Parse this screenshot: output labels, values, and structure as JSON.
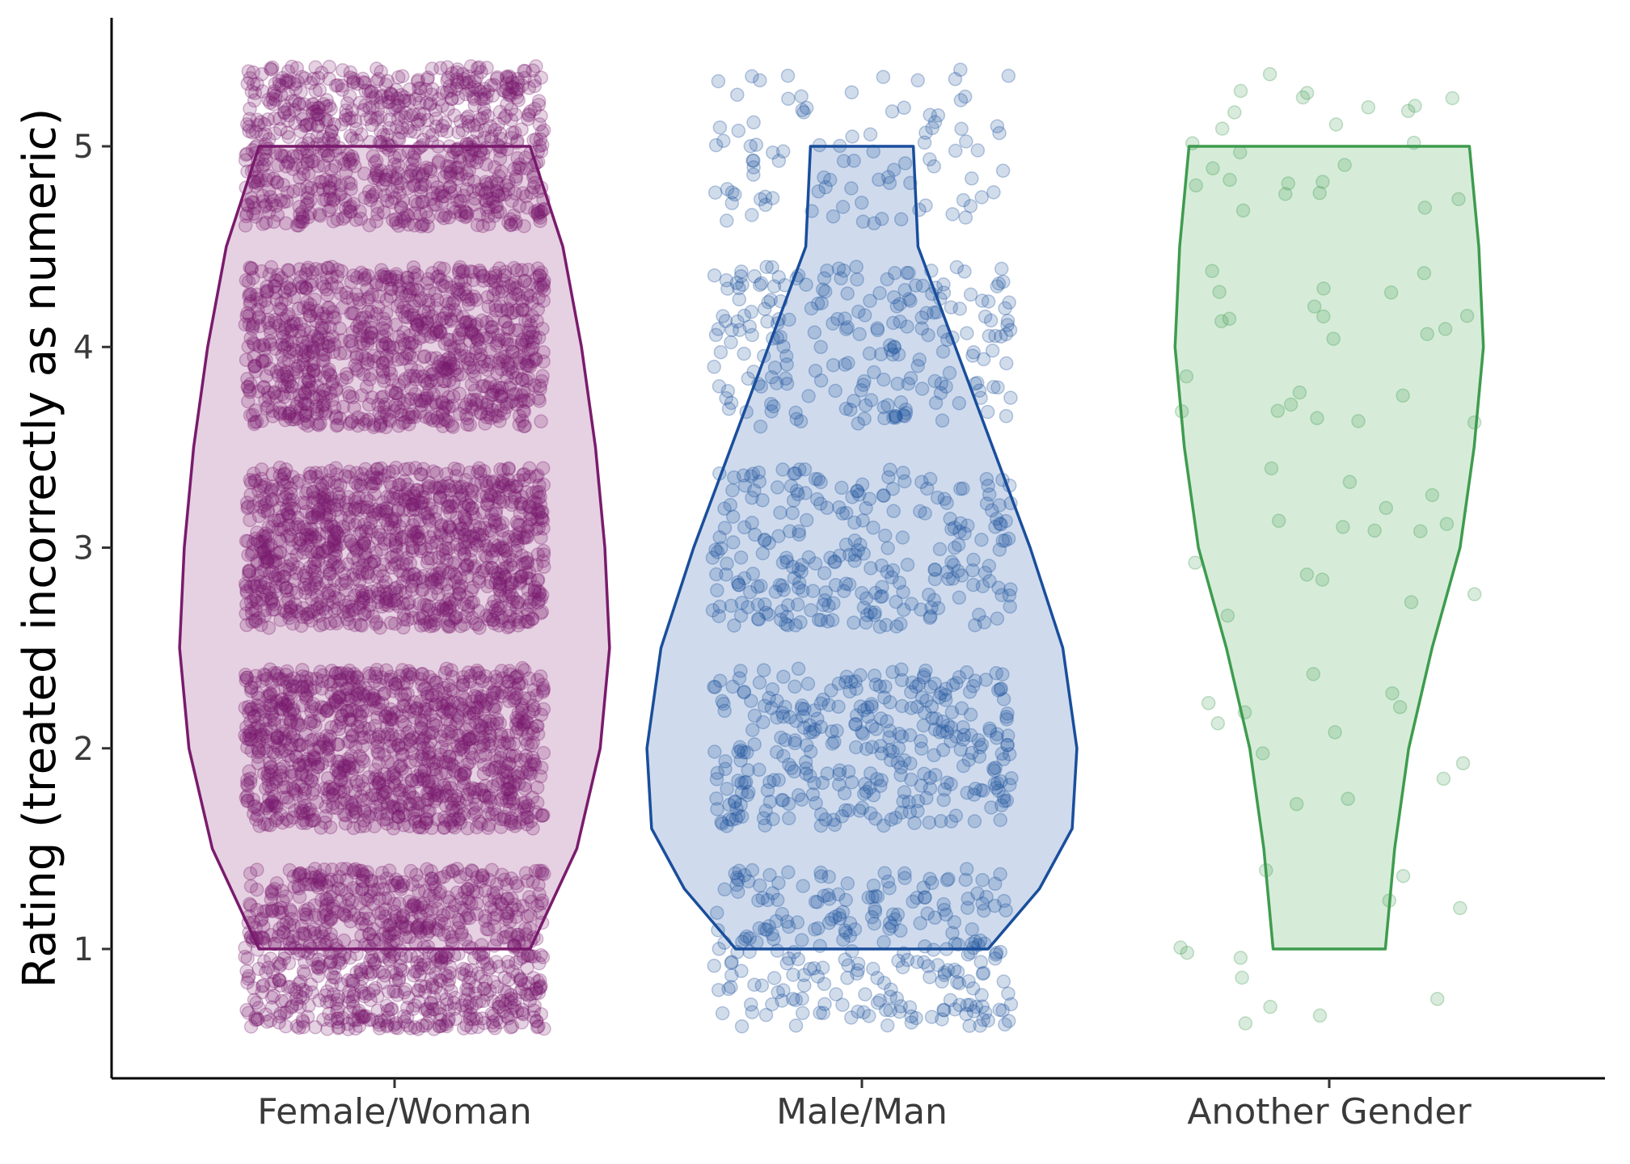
{
  "chart_data": {
    "type": "violin",
    "title": "",
    "xlabel": "",
    "ylabel": "Rating (treated incorrectly as numeric)",
    "ylim": [
      0.4,
      5.6
    ],
    "yticks": [
      "1",
      "2",
      "3",
      "4",
      "5"
    ],
    "ytick_values": [
      1,
      2,
      3,
      4,
      5
    ],
    "categories": [
      "Female/Woman",
      "Male/Man",
      "Another Gender"
    ],
    "legend": "none",
    "grid": false,
    "jitter_height": 0.4,
    "series": [
      {
        "category": "Female/Woman",
        "color": "#7a1b6c",
        "fill": "#e6d1e2",
        "approx_counts": {
          "1": 900,
          "2": 1150,
          "3": 1150,
          "4": 1000,
          "5": 850
        },
        "violin_profile": [
          {
            "y": 1.0,
            "w": 0.29
          },
          {
            "y": 1.5,
            "w": 0.39
          },
          {
            "y": 2.0,
            "w": 0.44
          },
          {
            "y": 2.5,
            "w": 0.46
          },
          {
            "y": 3.0,
            "w": 0.45
          },
          {
            "y": 3.5,
            "w": 0.43
          },
          {
            "y": 4.0,
            "w": 0.4
          },
          {
            "y": 4.5,
            "w": 0.36
          },
          {
            "y": 5.0,
            "w": 0.29
          }
        ]
      },
      {
        "category": "Male/Man",
        "color": "#1a4e9c",
        "fill": "#cfdbed",
        "approx_counts": {
          "1": 260,
          "2": 330,
          "3": 260,
          "4": 220,
          "5": 95
        },
        "violin_profile": [
          {
            "y": 1.0,
            "w": 0.27
          },
          {
            "y": 1.3,
            "w": 0.38
          },
          {
            "y": 1.6,
            "w": 0.45
          },
          {
            "y": 2.0,
            "w": 0.46
          },
          {
            "y": 2.5,
            "w": 0.43
          },
          {
            "y": 3.0,
            "w": 0.36
          },
          {
            "y": 3.5,
            "w": 0.28
          },
          {
            "y": 4.0,
            "w": 0.2
          },
          {
            "y": 4.5,
            "w": 0.12
          },
          {
            "y": 5.0,
            "w": 0.11
          }
        ]
      },
      {
        "category": "Another Gender",
        "color": "#3e9c4e",
        "fill": "#d6ecd9",
        "approx_counts": {
          "1": 12,
          "2": 12,
          "3": 15,
          "4": 22,
          "5": 25
        },
        "violin_profile": [
          {
            "y": 1.0,
            "w": 0.12
          },
          {
            "y": 1.5,
            "w": 0.14
          },
          {
            "y": 2.0,
            "w": 0.17
          },
          {
            "y": 2.5,
            "w": 0.22
          },
          {
            "y": 3.0,
            "w": 0.28
          },
          {
            "y": 3.5,
            "w": 0.31
          },
          {
            "y": 4.0,
            "w": 0.33
          },
          {
            "y": 4.5,
            "w": 0.32
          },
          {
            "y": 5.0,
            "w": 0.3
          }
        ]
      }
    ]
  }
}
